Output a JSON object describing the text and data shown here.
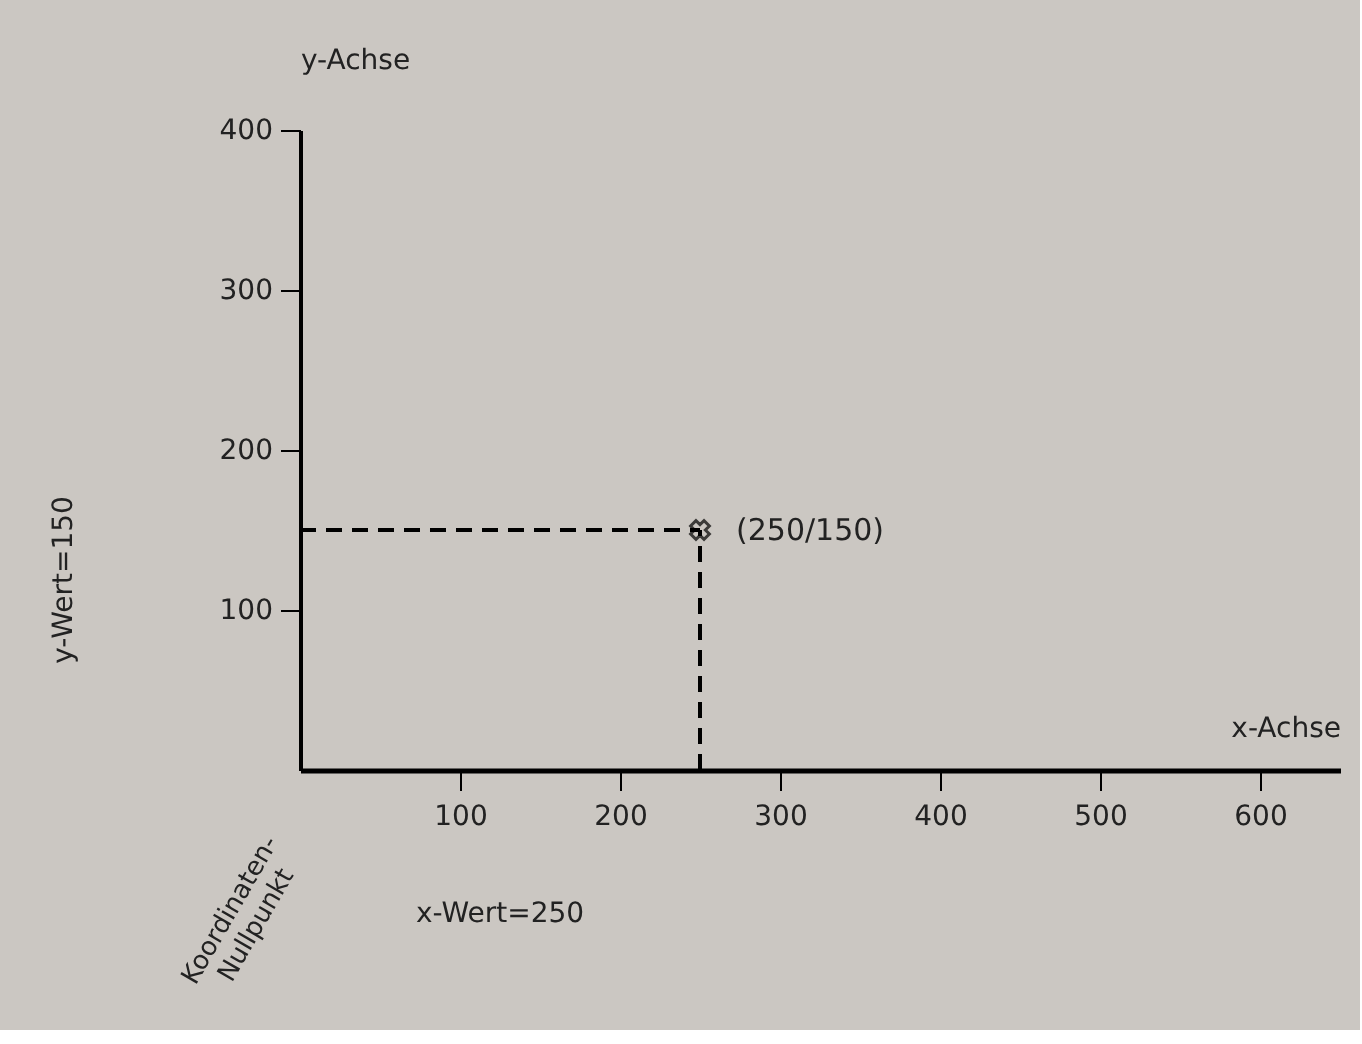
{
  "chart_data": {
    "type": "scatter",
    "xlabel": "x-Achse",
    "ylabel": "y-Achse",
    "x": [
      250
    ],
    "series": [
      {
        "color": "#000000",
        "values": [
          150
        ]
      }
    ],
    "xlim": [
      0,
      650
    ],
    "ylim": [
      0,
      400
    ],
    "xticks": [
      100,
      200,
      300,
      400,
      500,
      600
    ],
    "yticks": [
      100,
      200,
      300,
      400
    ],
    "marker": "cross",
    "grid": false,
    "ref_lines": [
      {
        "axis": "x",
        "value": 250,
        "line_style": "dashed",
        "color": "#000000"
      },
      {
        "axis": "y",
        "value": 150,
        "line_style": "dashed",
        "color": "#000000"
      }
    ],
    "annotations": [
      {
        "text": "(250/150)",
        "x": 250,
        "y": 150
      },
      "Koordinaten-\nNullpunkt",
      "x-Wert=250",
      "y-Wert=150"
    ]
  }
}
